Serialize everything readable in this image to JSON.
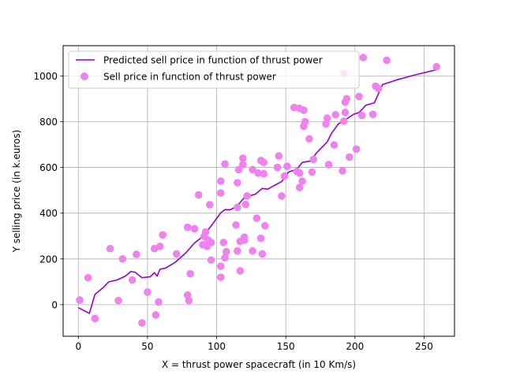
{
  "chart_data": {
    "type": "scatter",
    "xlabel": "X = thrust power spacecraft (in 10 Km/s)",
    "ylabel": "Y selling price (in k.euros)",
    "xlim": [
      -11,
      272
    ],
    "ylim": [
      -138,
      1132
    ],
    "xticks": [
      0,
      50,
      100,
      150,
      200,
      250
    ],
    "yticks": [
      0,
      200,
      400,
      600,
      800,
      1000
    ],
    "grid": true,
    "legend_position": "top-left",
    "series": [
      {
        "name": "Predicted sell price in function of thrust power",
        "kind": "line",
        "color": "#9400d3",
        "points": [
          [
            0,
            -13
          ],
          [
            8,
            -38
          ],
          [
            12,
            45
          ],
          [
            18,
            75
          ],
          [
            22,
            100
          ],
          [
            28,
            108
          ],
          [
            34,
            125
          ],
          [
            38,
            145
          ],
          [
            41,
            142
          ],
          [
            46,
            118
          ],
          [
            52,
            122
          ],
          [
            55,
            140
          ],
          [
            57,
            125
          ],
          [
            59,
            155
          ],
          [
            63,
            160
          ],
          [
            70,
            185
          ],
          [
            78,
            228
          ],
          [
            84,
            270
          ],
          [
            90,
            298
          ],
          [
            97,
            352
          ],
          [
            103,
            402
          ],
          [
            106,
            415
          ],
          [
            110,
            415
          ],
          [
            115,
            432
          ],
          [
            120,
            468
          ],
          [
            124,
            476
          ],
          [
            128,
            483
          ],
          [
            133,
            508
          ],
          [
            137,
            505
          ],
          [
            142,
            522
          ],
          [
            147,
            538
          ],
          [
            152,
            580
          ],
          [
            158,
            592
          ],
          [
            162,
            622
          ],
          [
            168,
            628
          ],
          [
            172,
            662
          ],
          [
            180,
            712
          ],
          [
            183,
            748
          ],
          [
            188,
            790
          ],
          [
            194,
            812
          ],
          [
            199,
            832
          ],
          [
            203,
            840
          ],
          [
            208,
            872
          ],
          [
            214,
            882
          ],
          [
            220,
            962
          ],
          [
            230,
            982
          ],
          [
            242,
            1002
          ],
          [
            259,
            1027
          ]
        ]
      },
      {
        "name": "Sell price in function of thrust power",
        "kind": "scatter",
        "color": "#ee82ee",
        "points": [
          [
            1,
            20
          ],
          [
            7,
            118
          ],
          [
            12,
            -60
          ],
          [
            23,
            245
          ],
          [
            29,
            18
          ],
          [
            32,
            200
          ],
          [
            39,
            108
          ],
          [
            42,
            220
          ],
          [
            46,
            -80
          ],
          [
            50,
            55
          ],
          [
            55,
            245
          ],
          [
            56,
            -45
          ],
          [
            58,
            12
          ],
          [
            59,
            255
          ],
          [
            61,
            305
          ],
          [
            71,
            222
          ],
          [
            79,
            42
          ],
          [
            80,
            18
          ],
          [
            79,
            338
          ],
          [
            81,
            135
          ],
          [
            84,
            332
          ],
          [
            87,
            480
          ],
          [
            90,
            262
          ],
          [
            91,
            298
          ],
          [
            92,
            318
          ],
          [
            93,
            255
          ],
          [
            94,
            282
          ],
          [
            96,
            195
          ],
          [
            96,
            272
          ],
          [
            95,
            437
          ],
          [
            103,
            488
          ],
          [
            103,
            540
          ],
          [
            103,
            120
          ],
          [
            103,
            168
          ],
          [
            105,
            272
          ],
          [
            106,
            205
          ],
          [
            106,
            615
          ],
          [
            107,
            232
          ],
          [
            114,
            348
          ],
          [
            115,
            235
          ],
          [
            115,
            425
          ],
          [
            115,
            533
          ],
          [
            116,
            590
          ],
          [
            117,
            148
          ],
          [
            117,
            277
          ],
          [
            119,
            640
          ],
          [
            119,
            612
          ],
          [
            120,
            295
          ],
          [
            120,
            282
          ],
          [
            121,
            438
          ],
          [
            122,
            475
          ],
          [
            126,
            590
          ],
          [
            126,
            235
          ],
          [
            129,
            378
          ],
          [
            130,
            575
          ],
          [
            132,
            290
          ],
          [
            132,
            630
          ],
          [
            133,
            222
          ],
          [
            134,
            572
          ],
          [
            134,
            622
          ],
          [
            135,
            345
          ],
          [
            144,
            600
          ],
          [
            145,
            650
          ],
          [
            147,
            475
          ],
          [
            149,
            562
          ],
          [
            151,
            605
          ],
          [
            156,
            862
          ],
          [
            158,
            582
          ],
          [
            160,
            858
          ],
          [
            160,
            512
          ],
          [
            160,
            575
          ],
          [
            162,
            540
          ],
          [
            163,
            780
          ],
          [
            163,
            850
          ],
          [
            164,
            800
          ],
          [
            167,
            725
          ],
          [
            169,
            580
          ],
          [
            170,
            635
          ],
          [
            179,
            790
          ],
          [
            180,
            815
          ],
          [
            181,
            612
          ],
          [
            186,
            830
          ],
          [
            185,
            698
          ],
          [
            191,
            585
          ],
          [
            192,
            802
          ],
          [
            192,
            1010
          ],
          [
            193,
            840
          ],
          [
            193,
            885
          ],
          [
            194,
            900
          ],
          [
            196,
            645
          ],
          [
            201,
            680
          ],
          [
            203,
            910
          ],
          [
            205,
            828
          ],
          [
            206,
            1080
          ],
          [
            213,
            832
          ],
          [
            215,
            955
          ],
          [
            217,
            945
          ],
          [
            223,
            1068
          ],
          [
            259,
            1040
          ]
        ]
      }
    ]
  }
}
